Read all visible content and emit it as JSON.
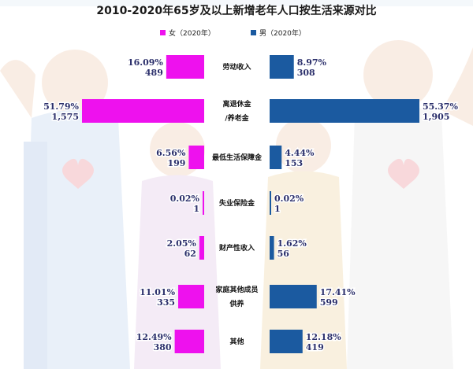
{
  "chart_data": {
    "type": "bar",
    "title": "2010-2020年65岁及以上新增老年人口按生活来源对比",
    "categories": [
      [
        "劳动收入"
      ],
      [
        "离退休金",
        "/养老金"
      ],
      [
        "最低生活保障金"
      ],
      [
        "失业保险金"
      ],
      [
        "财产性收入"
      ],
      [
        "家庭其他成员",
        "供养"
      ],
      [
        "其他"
      ]
    ],
    "series": [
      {
        "name": "女（2020年）",
        "color": "#ee11ee",
        "side": "left",
        "percent_labels": [
          "16.09%",
          "51.79%",
          "6.56%",
          "0.02%",
          "2.05%",
          "11.01%",
          "12.49%"
        ],
        "values": [
          489,
          1575,
          199,
          1,
          62,
          335,
          380
        ]
      },
      {
        "name": "男（2020年）",
        "color": "#1b5aa0",
        "side": "right",
        "percent_labels": [
          "8.97%",
          "55.37%",
          "4.44%",
          "0.02%",
          "1.62%",
          "17.41%",
          "12.18%"
        ],
        "values": [
          308,
          1905,
          153,
          1,
          56,
          599,
          419
        ]
      }
    ],
    "xlim": [
      0,
      1905
    ],
    "legend_position": "top-center"
  }
}
